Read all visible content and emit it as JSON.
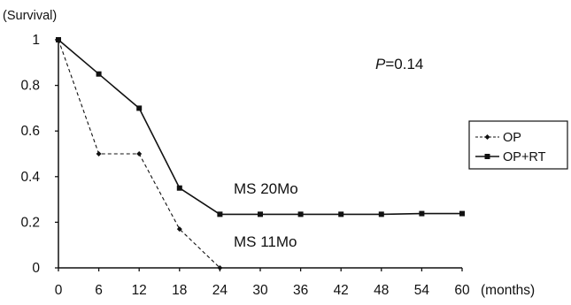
{
  "chart_data": {
    "type": "line",
    "ylabel": "(Survival)",
    "xlabel": "(months)",
    "x": [
      0,
      6,
      12,
      18,
      24,
      30,
      36,
      42,
      48,
      54,
      60
    ],
    "xticks": [
      "0",
      "6",
      "12",
      "18",
      "24",
      "30",
      "36",
      "42",
      "48",
      "54",
      "60"
    ],
    "yticks": [
      "0",
      "0.2",
      "0.4",
      "0.6",
      "0.8",
      "1"
    ],
    "ylim": [
      0,
      1
    ],
    "xlim": [
      0,
      60
    ],
    "grid": false,
    "legend_position": "right",
    "series": [
      {
        "name": "OP",
        "style": "dashed",
        "marker": "diamond",
        "x": [
          0,
          6,
          12,
          18,
          24
        ],
        "values": [
          1.0,
          0.5,
          0.5,
          0.17,
          0.0
        ]
      },
      {
        "name": "OP+RT",
        "style": "solid",
        "marker": "square",
        "x": [
          0,
          6,
          12,
          18,
          24,
          30,
          36,
          42,
          48,
          54,
          60
        ],
        "values": [
          1.0,
          0.85,
          0.7,
          0.35,
          0.235,
          0.235,
          0.235,
          0.235,
          0.235,
          0.238,
          0.238
        ]
      }
    ],
    "annotations": [
      {
        "label": "P",
        "text": "=0.14"
      },
      {
        "text": "MS 20Mo"
      },
      {
        "text": "MS 11Mo"
      }
    ]
  }
}
